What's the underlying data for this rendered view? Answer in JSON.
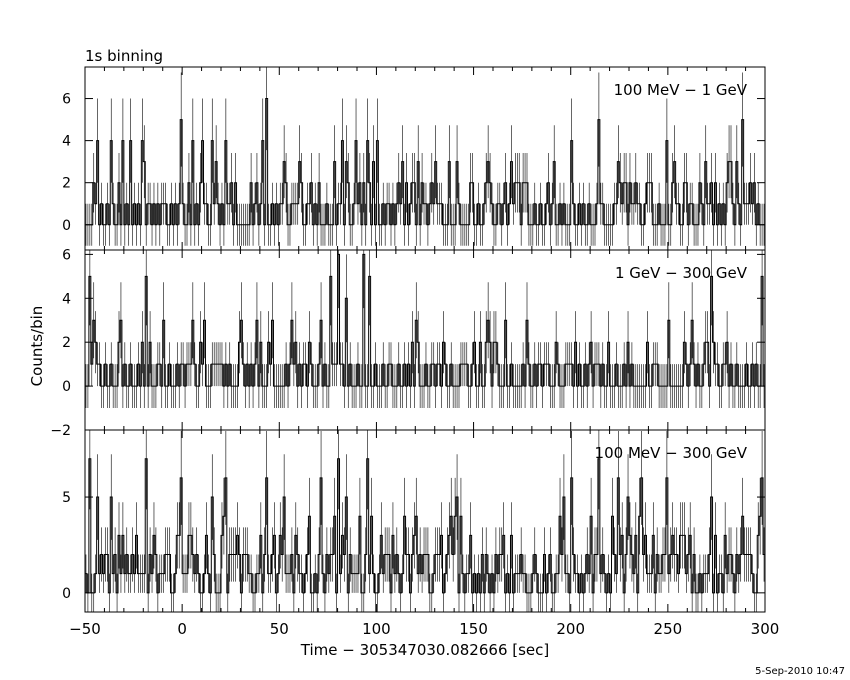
{
  "header": {
    "title": "1s binning"
  },
  "footer": {
    "timestamp": "5-Sep-2010 10:47"
  },
  "chart_data": [
    {
      "type": "line",
      "title": "1s binning",
      "label": "100 MeV − 1 GeV",
      "xlabel": "Time − 305347030.082666 [sec]",
      "ylabel": "Counts/bin",
      "xlim": [
        -50,
        300
      ],
      "ylim": [
        -1.2,
        7.5
      ],
      "y_ticks": [
        0,
        2,
        4,
        6
      ],
      "y_tick_labels": [
        "0",
        "2",
        "4",
        "6"
      ],
      "grid": false,
      "bin_width": 1,
      "seed": 11,
      "base_mean": 0.8,
      "spikes": [
        {
          "x": -44,
          "y": 4
        },
        {
          "x": -37,
          "y": 4
        },
        {
          "x": -31,
          "y": 4
        },
        {
          "x": -21,
          "y": 4
        },
        {
          "x": -1,
          "y": 5
        },
        {
          "x": 5,
          "y": 4
        },
        {
          "x": 10,
          "y": 4
        },
        {
          "x": 15,
          "y": 4
        },
        {
          "x": 22,
          "y": 4
        },
        {
          "x": 41,
          "y": 4
        },
        {
          "x": 43,
          "y": 6
        },
        {
          "x": 52,
          "y": 3
        },
        {
          "x": 78,
          "y": 3
        },
        {
          "x": 82,
          "y": 4
        },
        {
          "x": 89,
          "y": 4
        },
        {
          "x": 95,
          "y": 4
        },
        {
          "x": 141,
          "y": 3
        },
        {
          "x": 200,
          "y": 4
        },
        {
          "x": 214,
          "y": 5
        },
        {
          "x": 224,
          "y": 3
        },
        {
          "x": 249,
          "y": 4
        },
        {
          "x": 281,
          "y": 3
        }
      ]
    },
    {
      "type": "line",
      "label": "1 GeV − 300 GeV",
      "xlabel": "Time − 305347030.082666 [sec]",
      "ylabel": "Counts/bin",
      "xlim": [
        -50,
        300
      ],
      "ylim": [
        -2,
        6.2
      ],
      "y_ticks": [
        -2,
        0,
        2,
        4,
        6
      ],
      "y_tick_labels": [
        "−2",
        "0",
        "2",
        "4",
        "6"
      ],
      "grid": false,
      "bin_width": 1,
      "seed": 23,
      "base_mean": 0.6,
      "spikes": [
        {
          "x": -48,
          "y": 5
        },
        {
          "x": -46,
          "y": 3
        },
        {
          "x": -32,
          "y": 3
        },
        {
          "x": -19,
          "y": 5
        },
        {
          "x": -10,
          "y": 3
        },
        {
          "x": 11,
          "y": 3
        },
        {
          "x": 30,
          "y": 3
        },
        {
          "x": 46,
          "y": 3
        },
        {
          "x": 56,
          "y": 3
        },
        {
          "x": 71,
          "y": 3
        },
        {
          "x": 80,
          "y": 6
        },
        {
          "x": 84,
          "y": 4
        },
        {
          "x": 93,
          "y": 6
        },
        {
          "x": 96,
          "y": 5
        },
        {
          "x": 157,
          "y": 3
        },
        {
          "x": 177,
          "y": 3
        },
        {
          "x": 250,
          "y": 3
        },
        {
          "x": 272,
          "y": 5
        },
        {
          "x": 298,
          "y": 5
        }
      ]
    },
    {
      "type": "line",
      "label": "100 MeV − 300 GeV",
      "xlabel": "Time − 305347030.082666 [sec]",
      "ylabel": "Counts/bin",
      "xlim": [
        -50,
        300
      ],
      "ylim": [
        -1,
        8.5
      ],
      "y_ticks": [
        0,
        5
      ],
      "y_tick_labels": [
        "0",
        "5"
      ],
      "x_ticks": [
        -50,
        0,
        50,
        100,
        150,
        200,
        250,
        300
      ],
      "x_tick_labels": [
        "−50",
        "0",
        "50",
        "100",
        "150",
        "200",
        "250",
        "300"
      ],
      "grid": false,
      "bin_width": 1,
      "seed": 37,
      "base_mean": 1.4,
      "spikes": [
        {
          "x": -48,
          "y": 7
        },
        {
          "x": -44,
          "y": 5
        },
        {
          "x": -37,
          "y": 5
        },
        {
          "x": -19,
          "y": 7
        },
        {
          "x": -1,
          "y": 6
        },
        {
          "x": 15,
          "y": 5
        },
        {
          "x": 22,
          "y": 6
        },
        {
          "x": 43,
          "y": 6
        },
        {
          "x": 52,
          "y": 5
        },
        {
          "x": 71,
          "y": 6
        },
        {
          "x": 80,
          "y": 7
        },
        {
          "x": 84,
          "y": 5
        },
        {
          "x": 95,
          "y": 7
        },
        {
          "x": 141,
          "y": 5
        },
        {
          "x": 200,
          "y": 6
        },
        {
          "x": 214,
          "y": 7
        },
        {
          "x": 224,
          "y": 6
        },
        {
          "x": 249,
          "y": 6
        },
        {
          "x": 272,
          "y": 5
        },
        {
          "x": 298,
          "y": 6
        }
      ]
    }
  ]
}
